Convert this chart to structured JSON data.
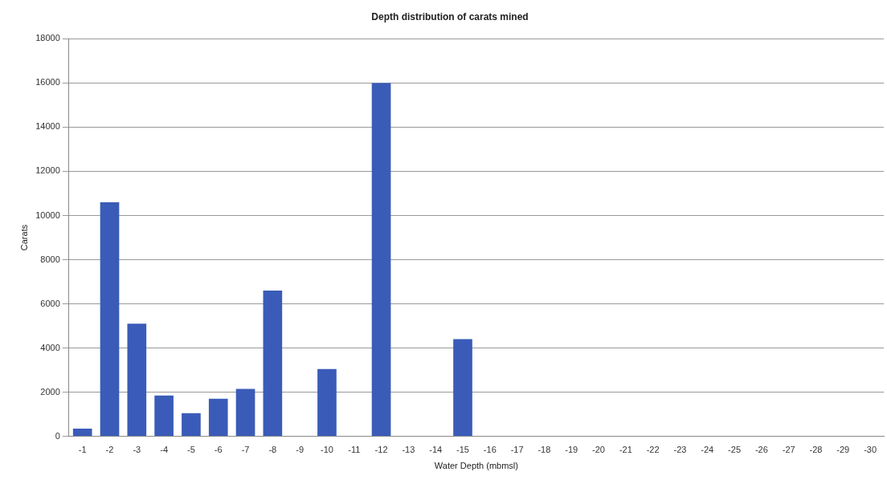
{
  "chart_data": {
    "type": "bar",
    "title": "Depth distribution of carats mined",
    "xlabel": "Water Depth (mbmsl)",
    "ylabel": "Carats",
    "categories": [
      "-1",
      "-2",
      "-3",
      "-4",
      "-5",
      "-6",
      "-7",
      "-8",
      "-9",
      "-10",
      "-11",
      "-12",
      "-13",
      "-14",
      "-15",
      "-16",
      "-17",
      "-18",
      "-19",
      "-20",
      "-21",
      "-22",
      "-23",
      "-24",
      "-25",
      "-26",
      "-27",
      "-28",
      "-29",
      "-30"
    ],
    "values": [
      350,
      10600,
      5100,
      1850,
      1050,
      1700,
      2150,
      6600,
      0,
      3050,
      0,
      16000,
      0,
      0,
      4400,
      0,
      0,
      0,
      0,
      0,
      0,
      0,
      0,
      0,
      0,
      0,
      0,
      0,
      0,
      0
    ],
    "color": "#3a5cb8",
    "ylim": [
      0,
      18000
    ],
    "yticks": [
      0,
      2000,
      4000,
      6000,
      8000,
      10000,
      12000,
      14000,
      16000,
      18000
    ],
    "grid": "y",
    "legend": false
  }
}
